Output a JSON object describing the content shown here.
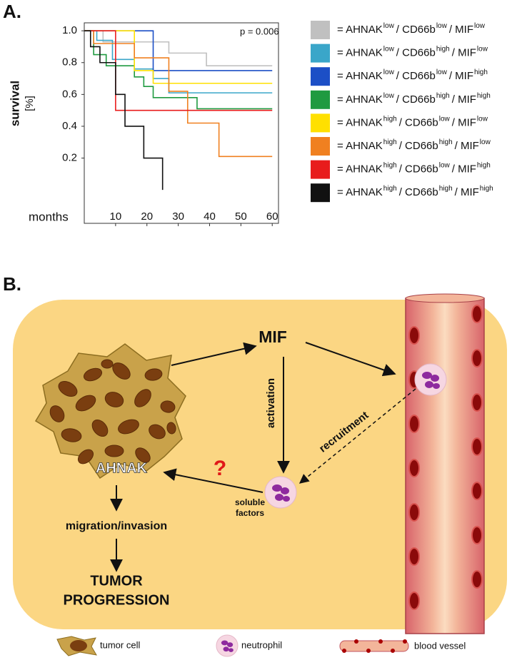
{
  "chart_data": {
    "type": "step",
    "panel_label": "A.",
    "annotation": "p = 0.006",
    "ylabel": [
      "survival",
      "[%]"
    ],
    "xlabel": "months",
    "xlim": [
      0,
      62
    ],
    "xticks": [
      10,
      20,
      30,
      40,
      50,
      60
    ],
    "ylim": [
      -0.21,
      1.05
    ],
    "yticks": [
      0.2,
      0.4,
      0.6,
      0.8,
      {
        "value": 1,
        "label": "1.0"
      }
    ],
    "grid": false,
    "legend": "right",
    "series": [
      {
        "name": [
          "= AHNAK",
          "low",
          "/ CD66b",
          "low",
          "/ MIF",
          "low"
        ],
        "color": "#c0c0c0",
        "x": [
          0,
          6,
          27,
          39,
          60
        ],
        "values": [
          1,
          0.93,
          0.86,
          0.78,
          0.78
        ]
      },
      {
        "name": [
          "= AHNAK",
          "low",
          "/ CD66b",
          "high",
          "/ MIF",
          "low"
        ],
        "color": "#3aa6c9",
        "x": [
          0,
          4,
          9,
          16,
          22,
          27,
          60
        ],
        "values": [
          1,
          0.94,
          0.82,
          0.76,
          0.7,
          0.61,
          0.61
        ]
      },
      {
        "name": [
          "= AHNAK",
          "low",
          "/ CD66b",
          "low",
          "/ MIF",
          "high"
        ],
        "color": "#1c4fc6",
        "x": [
          0,
          22,
          60
        ],
        "values": [
          1,
          0.75,
          0.75
        ]
      },
      {
        "name": [
          "= AHNAK",
          "low",
          "/ CD66b",
          "high",
          "/ MIF",
          "high"
        ],
        "color": "#1f9a40",
        "x": [
          0,
          3,
          7,
          16,
          19,
          22,
          36,
          60
        ],
        "values": [
          1,
          0.85,
          0.78,
          0.71,
          0.65,
          0.58,
          0.51,
          0.51
        ]
      },
      {
        "name": [
          "= AHNAK",
          "high",
          "/ CD66b",
          "low",
          "/ MIF",
          "low"
        ],
        "color": "#ffe000",
        "x": [
          0,
          16,
          22,
          60
        ],
        "values": [
          1,
          0.75,
          0.67,
          0.67
        ]
      },
      {
        "name": [
          "= AHNAK",
          "high",
          "/ CD66b",
          "high",
          "/ MIF",
          "low"
        ],
        "color": "#f08020",
        "x": [
          0,
          3,
          16,
          27,
          33,
          43,
          60
        ],
        "values": [
          1,
          0.92,
          0.83,
          0.62,
          0.42,
          0.21,
          0.21
        ]
      },
      {
        "name": [
          "= AHNAK",
          "high",
          "/ CD66b",
          "low",
          "/ MIF",
          "high"
        ],
        "color": "#e81c1c",
        "x": [
          0,
          10,
          60
        ],
        "values": [
          1,
          0.5,
          0.5
        ]
      },
      {
        "name": [
          "= AHNAK",
          "high",
          "/ CD66b",
          "high",
          "/ MIF",
          "high"
        ],
        "color": "#111111",
        "x": [
          0,
          2,
          5,
          10,
          13,
          19,
          25
        ],
        "values": [
          1,
          0.9,
          0.8,
          0.6,
          0.4,
          0.2,
          0
        ]
      }
    ]
  },
  "diagram": {
    "panel_label": "B.",
    "mif": "MIF",
    "activation": "activation",
    "recruitment": "recruitment",
    "ahnak": "AHNAK",
    "question": "?",
    "soluble_factors": [
      "soluble",
      "factors"
    ],
    "migration": "migration/invasion",
    "progression": [
      "TUMOR",
      "PROGRESSION"
    ],
    "legend": [
      "tumor cell",
      "neutrophil",
      "blood vessel"
    ]
  }
}
